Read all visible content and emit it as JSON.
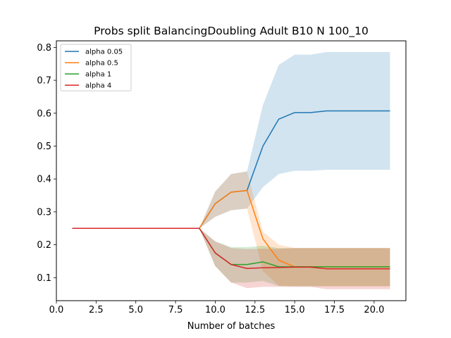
{
  "chart_data": {
    "type": "line",
    "title": "Probs split BalancingDoubling Adult B10 N 100_10",
    "xlabel": "Number of batches",
    "ylabel": "",
    "xlim": [
      0.0,
      22.0
    ],
    "ylim": [
      0.03,
      0.82
    ],
    "xticks": [
      0.0,
      2.5,
      5.0,
      7.5,
      10.0,
      12.5,
      15.0,
      17.5,
      20.0
    ],
    "xtick_labels": [
      "0.0",
      "2.5",
      "5.0",
      "7.5",
      "10.0",
      "12.5",
      "15.0",
      "17.5",
      "20.0"
    ],
    "yticks": [
      0.1,
      0.2,
      0.3,
      0.4,
      0.5,
      0.6,
      0.7,
      0.8
    ],
    "ytick_labels": [
      "0.1",
      "0.2",
      "0.3",
      "0.4",
      "0.5",
      "0.6",
      "0.7",
      "0.8"
    ],
    "grid": false,
    "legend_position": "top-left",
    "x": [
      1,
      2,
      3,
      4,
      5,
      6,
      7,
      8,
      9,
      10,
      11,
      12,
      13,
      14,
      15,
      16,
      17,
      18,
      19,
      20,
      21
    ],
    "series": [
      {
        "name": "alpha 0.05",
        "color": "#1f77b4",
        "values": [
          0.25,
          0.25,
          0.25,
          0.25,
          0.25,
          0.25,
          0.25,
          0.25,
          0.25,
          0.325,
          0.36,
          0.365,
          0.5,
          0.582,
          0.602,
          0.602,
          0.607,
          0.607,
          0.607,
          0.607,
          0.607
        ],
        "lower": [
          0.25,
          0.25,
          0.25,
          0.25,
          0.25,
          0.25,
          0.25,
          0.25,
          0.25,
          0.285,
          0.305,
          0.31,
          0.375,
          0.415,
          0.425,
          0.425,
          0.428,
          0.428,
          0.428,
          0.428,
          0.428
        ],
        "upper": [
          0.25,
          0.25,
          0.25,
          0.25,
          0.25,
          0.25,
          0.25,
          0.25,
          0.25,
          0.362,
          0.415,
          0.423,
          0.625,
          0.747,
          0.778,
          0.778,
          0.786,
          0.786,
          0.786,
          0.786,
          0.786
        ]
      },
      {
        "name": "alpha 0.5",
        "color": "#ff7f0e",
        "values": [
          0.25,
          0.25,
          0.25,
          0.25,
          0.25,
          0.25,
          0.25,
          0.25,
          0.25,
          0.325,
          0.36,
          0.365,
          0.218,
          0.153,
          0.133,
          0.133,
          0.133,
          0.133,
          0.133,
          0.133,
          0.133
        ],
        "lower": [
          0.25,
          0.25,
          0.25,
          0.25,
          0.25,
          0.25,
          0.25,
          0.25,
          0.25,
          0.285,
          0.305,
          0.31,
          0.12,
          0.075,
          0.074,
          0.074,
          0.074,
          0.074,
          0.074,
          0.074,
          0.074
        ],
        "upper": [
          0.25,
          0.25,
          0.25,
          0.25,
          0.25,
          0.25,
          0.25,
          0.25,
          0.25,
          0.362,
          0.415,
          0.423,
          0.24,
          0.2,
          0.19,
          0.19,
          0.19,
          0.19,
          0.19,
          0.19,
          0.19
        ]
      },
      {
        "name": "alpha 1",
        "color": "#2ca02c",
        "values": [
          0.25,
          0.25,
          0.25,
          0.25,
          0.25,
          0.25,
          0.25,
          0.25,
          0.25,
          0.175,
          0.14,
          0.14,
          0.148,
          0.133,
          0.133,
          0.133,
          0.133,
          0.133,
          0.133,
          0.133,
          0.133
        ],
        "lower": [
          0.25,
          0.25,
          0.25,
          0.25,
          0.25,
          0.25,
          0.25,
          0.25,
          0.25,
          0.135,
          0.085,
          0.085,
          0.09,
          0.075,
          0.074,
          0.074,
          0.074,
          0.074,
          0.074,
          0.074,
          0.074
        ],
        "upper": [
          0.25,
          0.25,
          0.25,
          0.25,
          0.25,
          0.25,
          0.25,
          0.25,
          0.25,
          0.21,
          0.193,
          0.193,
          0.197,
          0.19,
          0.19,
          0.19,
          0.19,
          0.19,
          0.19,
          0.19,
          0.19
        ]
      },
      {
        "name": "alpha 4",
        "color": "#d62728",
        "values": [
          0.25,
          0.25,
          0.25,
          0.25,
          0.25,
          0.25,
          0.25,
          0.25,
          0.25,
          0.175,
          0.14,
          0.128,
          0.13,
          0.131,
          0.132,
          0.132,
          0.127,
          0.127,
          0.127,
          0.127,
          0.127
        ],
        "lower": [
          0.25,
          0.25,
          0.25,
          0.25,
          0.25,
          0.25,
          0.25,
          0.25,
          0.25,
          0.135,
          0.085,
          0.068,
          0.072,
          0.072,
          0.072,
          0.072,
          0.065,
          0.065,
          0.065,
          0.065,
          0.065
        ],
        "upper": [
          0.25,
          0.25,
          0.25,
          0.25,
          0.25,
          0.25,
          0.25,
          0.25,
          0.25,
          0.21,
          0.19,
          0.187,
          0.188,
          0.188,
          0.19,
          0.19,
          0.19,
          0.19,
          0.19,
          0.19,
          0.19
        ]
      }
    ]
  }
}
